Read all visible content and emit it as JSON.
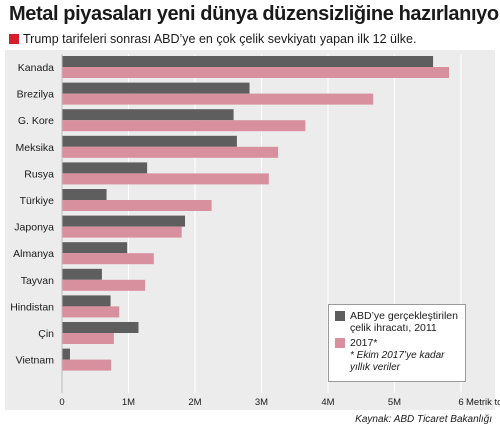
{
  "title": "Metal piyasaları yeni dünya düzensizliğine hazırlanıyor",
  "subtitle": "Trump tarifeleri sonrası ABD’ye en çok çelik sevkiyatı yapan ilk 12 ülke.",
  "source": "Kaynak: ABD Ticaret Bakanlığı",
  "colors": {
    "series_2011": "#5e5e5e",
    "series_2017": "#d9909e",
    "accent": "#d81e2c"
  },
  "legend": {
    "item_2011": "ABD’ye gerçekleştirilen çelik ihracatı, 2011",
    "item_2017": "2017*",
    "note": "* Ekim 2017’ye kadar yıllık veriler"
  },
  "chart_data": {
    "type": "bar",
    "orientation": "horizontal",
    "title": "Metal piyasaları yeni dünya düzensizliğine hazırlanıyor",
    "subtitle": "Trump tarifeleri sonrası ABD’ye en çok çelik sevkiyatı yapan ilk 12 ülke.",
    "categories": [
      "Kanada",
      "Brezilya",
      "G. Kore",
      "Meksika",
      "Rusya",
      "Türkiye",
      "Japonya",
      "Almanya",
      "Tayvan",
      "Hindistan",
      "Çin",
      "Vietnam"
    ],
    "series": [
      {
        "name": "ABD’ye gerçekleştirilen çelik ihracatı, 2011",
        "values": [
          5.58,
          2.82,
          2.58,
          2.63,
          1.28,
          0.67,
          1.85,
          0.98,
          0.6,
          0.73,
          1.15,
          0.12
        ]
      },
      {
        "name": "2017*",
        "values": [
          5.82,
          4.68,
          3.66,
          3.25,
          3.11,
          2.25,
          1.8,
          1.38,
          1.25,
          0.86,
          0.78,
          0.74
        ]
      }
    ],
    "xunit": "Metrik ton",
    "ticks": [
      {
        "value": 0,
        "label": "0"
      },
      {
        "value": 1,
        "label": "1M"
      },
      {
        "value": 2,
        "label": "2M"
      },
      {
        "value": 3,
        "label": "3M"
      },
      {
        "value": 4,
        "label": "4M"
      },
      {
        "value": 5,
        "label": "5M"
      },
      {
        "value": 6,
        "label": "6"
      }
    ],
    "xlim": [
      0,
      6
    ],
    "grid": true,
    "legend_position": "bottom-right"
  }
}
